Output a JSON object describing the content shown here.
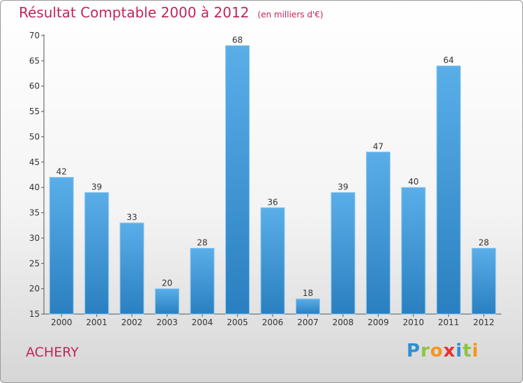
{
  "header": {
    "title": "Résultat Comptable 2000 à 2012",
    "unit": "(en milliers d'€)"
  },
  "commune": "ACHERY",
  "logo": {
    "text": "Proxiti",
    "letters": [
      {
        "ch": "P",
        "color": "#2f8fd0"
      },
      {
        "ch": "r",
        "color": "#8bc53f"
      },
      {
        "ch": "o",
        "color": "#f7941d"
      },
      {
        "ch": "x",
        "color": "#e8312f"
      },
      {
        "ch": "i",
        "color": "#2f8fd0"
      },
      {
        "ch": "t",
        "color": "#8bc53f"
      },
      {
        "ch": "i",
        "color": "#f7941d"
      }
    ]
  },
  "colors": {
    "title": "#c2255c",
    "bar_light": "#5aaee8",
    "bar_dark": "#2a7fc0"
  },
  "chart_data": {
    "type": "bar",
    "title": "Résultat Comptable 2000 à 2012 (en milliers d'€)",
    "xlabel": "",
    "ylabel": "",
    "categories": [
      "2000",
      "2001",
      "2002",
      "2003",
      "2004",
      "2005",
      "2006",
      "2007",
      "2008",
      "2009",
      "2010",
      "2011",
      "2012"
    ],
    "values": [
      42,
      39,
      33,
      20,
      28,
      68,
      36,
      18,
      39,
      47,
      40,
      64,
      28
    ],
    "ylim": [
      15,
      70
    ],
    "yticks": [
      15,
      20,
      25,
      30,
      35,
      40,
      45,
      50,
      55,
      60,
      65,
      70
    ],
    "grid": false,
    "legend": "none"
  }
}
